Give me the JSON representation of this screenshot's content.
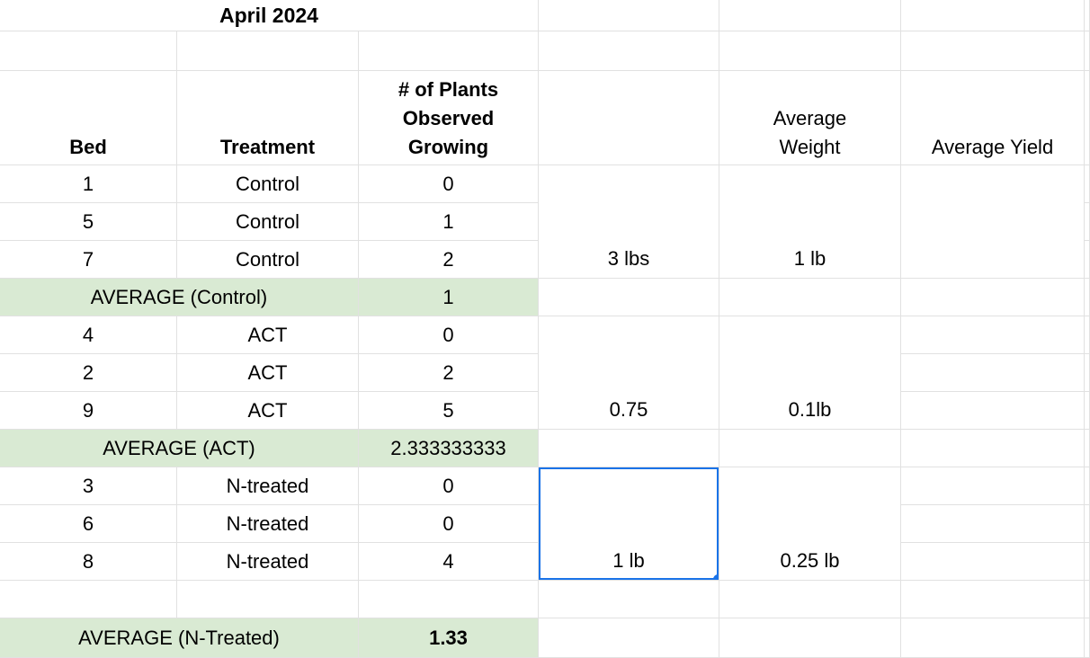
{
  "colors": {
    "accent": "#1a73e8",
    "green": "#d9ead3",
    "gridline": "#e1e1e1",
    "text": "#000000"
  },
  "sheet": {
    "title": "April 2024",
    "headers": {
      "bed": "Bed",
      "treatment": "Treatment",
      "plants": "# of Plants\nObserved\nGrowing",
      "average_weight": "Average\nWeight",
      "average_yield": "Average Yield"
    },
    "groups": [
      {
        "name": "Control",
        "rows": [
          {
            "bed": "1",
            "treatment": "Control",
            "count": "0"
          },
          {
            "bed": "5",
            "treatment": "Control",
            "count": "1"
          },
          {
            "bed": "7",
            "treatment": "Control",
            "count": "2"
          }
        ],
        "weight_value": "3 lbs",
        "average_weight": "1 lb",
        "average_label": "AVERAGE (Control)",
        "average_value": "1"
      },
      {
        "name": "ACT",
        "rows": [
          {
            "bed": "4",
            "treatment": "ACT",
            "count": "0"
          },
          {
            "bed": "2",
            "treatment": "ACT",
            "count": "2"
          },
          {
            "bed": "9",
            "treatment": "ACT",
            "count": "5"
          }
        ],
        "weight_value": "0.75",
        "average_weight": "0.1lb",
        "average_label": "AVERAGE (ACT)",
        "average_value": "2.333333333"
      },
      {
        "name": "N-treated",
        "rows": [
          {
            "bed": "3",
            "treatment": "N-treated",
            "count": "0"
          },
          {
            "bed": "6",
            "treatment": "N-treated",
            "count": "0"
          },
          {
            "bed": "8",
            "treatment": "N-treated",
            "count": "4"
          }
        ],
        "weight_value": "1 lb",
        "average_weight": "0.25 lb",
        "average_label": "AVERAGE (N-Treated)",
        "average_value": "1.33"
      }
    ]
  }
}
